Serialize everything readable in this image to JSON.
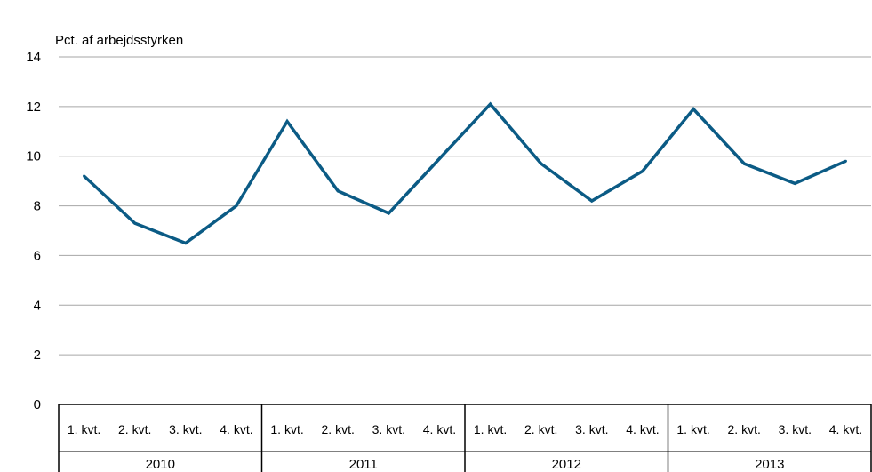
{
  "chart_data": {
    "type": "line",
    "ylabel": "Pct. af arbejdsstyrken",
    "ylim": [
      0,
      14
    ],
    "yticks": [
      0,
      2,
      4,
      6,
      8,
      10,
      12,
      14
    ],
    "grid": true,
    "years": [
      "2010",
      "2011",
      "2012",
      "2013"
    ],
    "quarter_labels": [
      "1. kvt.",
      "2. kvt.",
      "3. kvt.",
      "4. kvt."
    ],
    "categories": [
      "2010 1. kvt.",
      "2010 2. kvt.",
      "2010 3. kvt.",
      "2010 4. kvt.",
      "2011 1. kvt.",
      "2011 2. kvt.",
      "2011 3. kvt.",
      "2011 4. kvt.",
      "2012 1. kvt.",
      "2012 2. kvt.",
      "2012 3. kvt.",
      "2012 4. kvt.",
      "2013 1. kvt.",
      "2013 2. kvt.",
      "2013 3. kvt.",
      "2013 4. kvt."
    ],
    "series": [
      {
        "values": [
          9.2,
          7.3,
          6.5,
          8.0,
          11.4,
          8.6,
          7.7,
          9.9,
          12.1,
          9.7,
          8.2,
          9.4,
          11.9,
          9.7,
          8.9,
          9.8
        ],
        "color": "#0b5b85"
      }
    ],
    "colors": {
      "line": "#0b5b85",
      "grid": "#a6a6a6",
      "axis": "#000000"
    }
  }
}
